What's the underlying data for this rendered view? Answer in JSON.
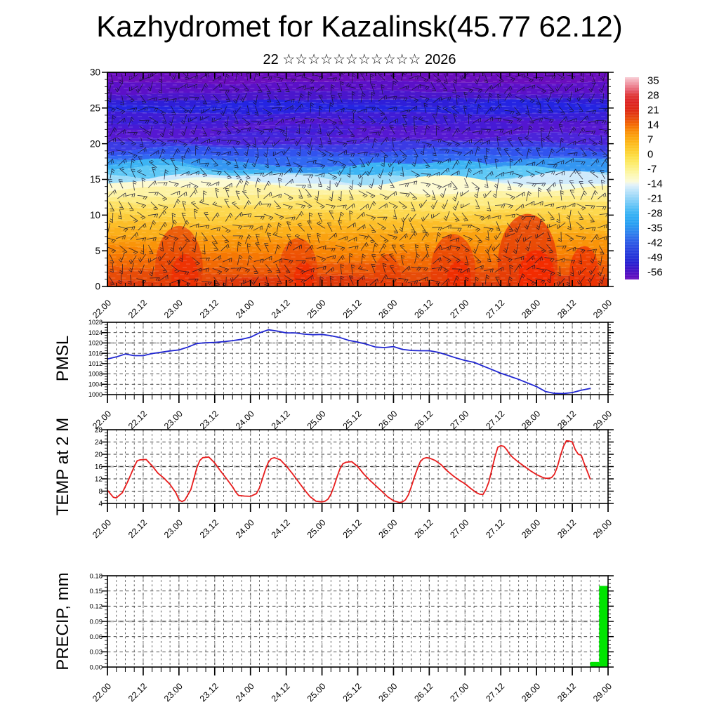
{
  "title": "Kazhydromet for Kazalinsk(45.77 62.12)",
  "subtitle": "22 ☆☆☆☆☆☆☆☆☆☆☆ 2026",
  "x_axis": {
    "labels": [
      "22.00",
      "22.12",
      "23.00",
      "23.12",
      "24.00",
      "24.12",
      "25.00",
      "25.12",
      "26.00",
      "26.12",
      "27.00",
      "27.12",
      "28.00",
      "28.12",
      "29.00"
    ],
    "major_step_hours": 12,
    "minor_step_hours": 3,
    "span_hours": 168
  },
  "chart_data": [
    {
      "id": "time_height_section",
      "type": "heatmap",
      "overlay": "wind-barbs",
      "ylim": [
        0,
        30
      ],
      "ytick_values": [
        0,
        5,
        10,
        15,
        20,
        25,
        30
      ],
      "ytick_labels": [
        "0",
        "5",
        "10",
        "15",
        "20",
        "25",
        "30"
      ],
      "bands": [
        [
          30,
          "#6a0dbe"
        ],
        [
          28.6,
          "#5b10c8"
        ],
        [
          27.2,
          "#4a16cc"
        ],
        [
          26.2,
          "#2e1ed8"
        ],
        [
          25.6,
          "#2424e2"
        ],
        [
          24.9,
          "#2822e0"
        ],
        [
          24.3,
          "#3f1cd6"
        ],
        [
          23.2,
          "#5316d0"
        ],
        [
          22.0,
          "#5618d2"
        ],
        [
          21.0,
          "#4b24da"
        ],
        [
          20.1,
          "#3b3ae4"
        ],
        [
          19.2,
          "#3153ee"
        ],
        [
          18.3,
          "#3168f2"
        ],
        [
          17.4,
          "#3396f2"
        ],
        [
          16.7,
          "#3cb4f4"
        ],
        [
          16.1,
          "#5ec8f6"
        ],
        [
          15.5,
          "#9cdcf8"
        ],
        [
          15.0,
          "#cfeafb"
        ],
        [
          14.65,
          "#effae8"
        ],
        [
          14.35,
          "#fdfad0"
        ],
        [
          13.6,
          "#fdf3a4"
        ],
        [
          12.7,
          "#fdec84"
        ],
        [
          11.8,
          "#fde266"
        ],
        [
          10.9,
          "#fdd84e"
        ],
        [
          10.0,
          "#fccc3a"
        ],
        [
          9.1,
          "#fcbe28"
        ],
        [
          8.2,
          "#fbb01a"
        ],
        [
          7.3,
          "#faa210"
        ],
        [
          6.4,
          "#f99409"
        ],
        [
          5.5,
          "#f88604"
        ],
        [
          4.6,
          "#f67803"
        ],
        [
          3.7,
          "#f26a04"
        ],
        [
          2.8,
          "#ed5a06"
        ],
        [
          1.9,
          "#e74c08"
        ],
        [
          1.0,
          "#e0390a"
        ],
        [
          0,
          "#dd360b"
        ]
      ],
      "hot_spots": [
        {
          "t": 24,
          "w": 16,
          "top": 7.5,
          "color": "#e63c06",
          "opacity": 0.7
        },
        {
          "t": 26,
          "w": 9,
          "top": 4.0,
          "color": "#ef2e02",
          "opacity": 0.8
        },
        {
          "t": 64,
          "w": 13,
          "top": 6.0,
          "color": "#e83a05",
          "opacity": 0.65
        },
        {
          "t": 66,
          "w": 7,
          "top": 3.0,
          "color": "#f22a00",
          "opacity": 0.75
        },
        {
          "t": 94,
          "w": 9,
          "top": 4.0,
          "color": "#ea3c04",
          "opacity": 0.55
        },
        {
          "t": 116,
          "w": 15,
          "top": 6.5,
          "color": "#e83a05",
          "opacity": 0.7
        },
        {
          "t": 118,
          "w": 8,
          "top": 3.2,
          "color": "#f22a00",
          "opacity": 0.75
        },
        {
          "t": 141,
          "w": 20,
          "top": 9.0,
          "color": "#e53a06",
          "opacity": 0.8
        },
        {
          "t": 144,
          "w": 12,
          "top": 4.5,
          "color": "#f42800",
          "opacity": 0.85
        },
        {
          "t": 160,
          "w": 10,
          "top": 5.0,
          "color": "#ee3202",
          "opacity": 0.75
        }
      ],
      "colorbar": {
        "tick_values": [
          35,
          28,
          21,
          14,
          7,
          0,
          -7,
          -14,
          -21,
          -28,
          -35,
          -42,
          -49,
          -56
        ],
        "tick_labels": [
          "35",
          "28",
          "21",
          "14",
          "7",
          "0",
          "-7",
          "-14",
          "-21",
          "-28",
          "-35",
          "-42",
          "-49",
          "-56"
        ],
        "value_range": [
          36.5,
          -59.5
        ],
        "stops": [
          [
            36.5,
            "#f8ccd4"
          ],
          [
            33,
            "#ef8e9c"
          ],
          [
            30,
            "#e55868"
          ],
          [
            28,
            "#e03a3a"
          ],
          [
            25,
            "#dd2424"
          ],
          [
            21,
            "#de2a16"
          ],
          [
            17,
            "#e84a0c"
          ],
          [
            14,
            "#f46a06"
          ],
          [
            11,
            "#f98c06"
          ],
          [
            8,
            "#fca60e"
          ],
          [
            5,
            "#fdba1c"
          ],
          [
            2,
            "#fdcc2c"
          ],
          [
            -1,
            "#fdde44"
          ],
          [
            -4,
            "#fdea64"
          ],
          [
            -7,
            "#fdf28c"
          ],
          [
            -10,
            "#fdf8b4"
          ],
          [
            -13,
            "#fbfad8"
          ],
          [
            -14.5,
            "#e4f2f8"
          ],
          [
            -17,
            "#c2e6fa"
          ],
          [
            -21,
            "#92d4f8"
          ],
          [
            -25,
            "#5cc2f6"
          ],
          [
            -29,
            "#34b0f4"
          ],
          [
            -33,
            "#28a0f2"
          ],
          [
            -37,
            "#2e84ee"
          ],
          [
            -41,
            "#2f62e8"
          ],
          [
            -45,
            "#2a46e0"
          ],
          [
            -49,
            "#2432d8"
          ],
          [
            -52,
            "#2a1ed0"
          ],
          [
            -55,
            "#4414c6"
          ],
          [
            -59.5,
            "#6a0dbe"
          ]
        ]
      }
    },
    {
      "id": "pmsl",
      "type": "line",
      "ylabel": "PMSL",
      "line_color": "#2026d2",
      "ylim": [
        1000,
        1028
      ],
      "ytick_values": [
        1000,
        1004,
        1008,
        1012,
        1016,
        1020,
        1024,
        1028
      ],
      "ytick_labels": [
        "1000",
        "1004",
        "1008",
        "1012",
        "1016",
        "1020",
        "1024",
        "1028"
      ],
      "emphasis_gridline": 1020,
      "series": [
        [
          0,
          1013.8
        ],
        [
          3,
          1014.6
        ],
        [
          6,
          1015.7
        ],
        [
          9,
          1015.1
        ],
        [
          12,
          1015.1
        ],
        [
          15,
          1015.9
        ],
        [
          18,
          1016.4
        ],
        [
          21,
          1016.9
        ],
        [
          24,
          1017.3
        ],
        [
          27,
          1018.4
        ],
        [
          30,
          1019.8
        ],
        [
          33,
          1020.1
        ],
        [
          36,
          1020.2
        ],
        [
          39,
          1020.5
        ],
        [
          42,
          1020.9
        ],
        [
          45,
          1021.4
        ],
        [
          48,
          1022.2
        ],
        [
          51,
          1023.9
        ],
        [
          54,
          1025.1
        ],
        [
          57,
          1024.6
        ],
        [
          60,
          1023.9
        ],
        [
          63,
          1023.9
        ],
        [
          66,
          1023.4
        ],
        [
          69,
          1023.2
        ],
        [
          72,
          1023.3
        ],
        [
          75,
          1022.8
        ],
        [
          78,
          1022.1
        ],
        [
          81,
          1021.0
        ],
        [
          84,
          1020.3
        ],
        [
          87,
          1019.5
        ],
        [
          90,
          1018.4
        ],
        [
          93,
          1018.2
        ],
        [
          96,
          1018.6
        ],
        [
          99,
          1017.5
        ],
        [
          102,
          1017.1
        ],
        [
          105,
          1017.0
        ],
        [
          108,
          1017.0
        ],
        [
          111,
          1016.4
        ],
        [
          114,
          1015.3
        ],
        [
          117,
          1014.2
        ],
        [
          120,
          1013.2
        ],
        [
          123,
          1012.5
        ],
        [
          126,
          1011.1
        ],
        [
          129,
          1009.7
        ],
        [
          132,
          1008.3
        ],
        [
          135,
          1007.1
        ],
        [
          138,
          1005.9
        ],
        [
          141,
          1004.5
        ],
        [
          144,
          1003.1
        ],
        [
          147,
          1001.2
        ],
        [
          150,
          1000.5
        ],
        [
          153,
          1000.4
        ],
        [
          156,
          1000.8
        ],
        [
          159,
          1001.7
        ],
        [
          162,
          1002.4
        ]
      ]
    },
    {
      "id": "temp_2m",
      "type": "line",
      "ylabel": "TEMP at 2 M",
      "line_color": "#e81c1c",
      "ylim": [
        4,
        28
      ],
      "ytick_values": [
        4,
        8,
        12,
        16,
        20,
        24,
        28
      ],
      "ytick_labels": [
        "4",
        "8",
        "12",
        "16",
        "20",
        "24",
        "28"
      ],
      "emphasis_gridline": 16,
      "series": [
        [
          0,
          8.3
        ],
        [
          2,
          6.0
        ],
        [
          3,
          5.8
        ],
        [
          5,
          7.5
        ],
        [
          7,
          11.5
        ],
        [
          9,
          16.0
        ],
        [
          10,
          17.9
        ],
        [
          11,
          18.2
        ],
        [
          13,
          18.3
        ],
        [
          15,
          16.2
        ],
        [
          17,
          13.8
        ],
        [
          19,
          12.2
        ],
        [
          21,
          10.2
        ],
        [
          23,
          7.4
        ],
        [
          24,
          5.2
        ],
        [
          25,
          4.6
        ],
        [
          26,
          5.1
        ],
        [
          28,
          8.5
        ],
        [
          29,
          12.0
        ],
        [
          30,
          15.6
        ],
        [
          31,
          18.0
        ],
        [
          32,
          18.9
        ],
        [
          34,
          19.1
        ],
        [
          36,
          17.2
        ],
        [
          38,
          14.5
        ],
        [
          40,
          12.0
        ],
        [
          42,
          9.4
        ],
        [
          43,
          7.8
        ],
        [
          44,
          6.6
        ],
        [
          46,
          6.4
        ],
        [
          48,
          6.3
        ],
        [
          50,
          7.2
        ],
        [
          51,
          9.0
        ],
        [
          52,
          12.0
        ],
        [
          53,
          15.0
        ],
        [
          54,
          17.4
        ],
        [
          55,
          18.6
        ],
        [
          56,
          18.9
        ],
        [
          58,
          18.2
        ],
        [
          60,
          16.2
        ],
        [
          62,
          13.8
        ],
        [
          64,
          11.2
        ],
        [
          66,
          8.6
        ],
        [
          68,
          6.2
        ],
        [
          70,
          4.7
        ],
        [
          72,
          4.5
        ],
        [
          73,
          4.7
        ],
        [
          74,
          5.4
        ],
        [
          75,
          7.0
        ],
        [
          76,
          9.5
        ],
        [
          77,
          12.5
        ],
        [
          78,
          15.2
        ],
        [
          79,
          16.9
        ],
        [
          80,
          17.4
        ],
        [
          82,
          17.6
        ],
        [
          84,
          16.0
        ],
        [
          86,
          13.6
        ],
        [
          88,
          11.6
        ],
        [
          90,
          9.8
        ],
        [
          92,
          8.0
        ],
        [
          94,
          6.2
        ],
        [
          96,
          4.9
        ],
        [
          98,
          4.3
        ],
        [
          99,
          4.5
        ],
        [
          100,
          5.2
        ],
        [
          101,
          6.8
        ],
        [
          102,
          9.5
        ],
        [
          103,
          12.5
        ],
        [
          104,
          15.3
        ],
        [
          105,
          17.6
        ],
        [
          106,
          18.6
        ],
        [
          107,
          18.9
        ],
        [
          108,
          18.8
        ],
        [
          110,
          18.0
        ],
        [
          112,
          16.6
        ],
        [
          114,
          14.6
        ],
        [
          116,
          13.0
        ],
        [
          118,
          11.6
        ],
        [
          120,
          10.4
        ],
        [
          122,
          8.8
        ],
        [
          124,
          7.4
        ],
        [
          125,
          7.0
        ],
        [
          126,
          6.9
        ],
        [
          127,
          8.5
        ],
        [
          128,
          11.0
        ],
        [
          129,
          15.0
        ],
        [
          130,
          19.0
        ],
        [
          131,
          22.3
        ],
        [
          132,
          22.8
        ],
        [
          133,
          22.6
        ],
        [
          134,
          21.5
        ],
        [
          135,
          20.0
        ],
        [
          136,
          19.0
        ],
        [
          138,
          17.4
        ],
        [
          140,
          16.0
        ],
        [
          142,
          14.6
        ],
        [
          144,
          13.4
        ],
        [
          146,
          12.5
        ],
        [
          147,
          12.2
        ],
        [
          148,
          12.2
        ],
        [
          149,
          12.4
        ],
        [
          150,
          13.5
        ],
        [
          151,
          16.0
        ],
        [
          152,
          19.5
        ],
        [
          153,
          22.5
        ],
        [
          154,
          24.4
        ],
        [
          155,
          24.3
        ],
        [
          156,
          24.0
        ],
        [
          157,
          21.5
        ],
        [
          158,
          20.0
        ],
        [
          159,
          19.7
        ],
        [
          160,
          17.0
        ],
        [
          161,
          14.5
        ],
        [
          162,
          12.0
        ]
      ]
    },
    {
      "id": "precip",
      "type": "bar",
      "ylabel": "PRECIP, mm",
      "bar_color": "#00e400",
      "ylim": [
        0,
        0.18
      ],
      "ytick_values": [
        0,
        0.03,
        0.06,
        0.09,
        0.12,
        0.15,
        0.18
      ],
      "ytick_labels": [
        "0.00",
        "0.03",
        "0.06",
        "0.09",
        "0.12",
        "0.15",
        "0.18"
      ],
      "emphasis_gridline": 0.09,
      "bars": [
        {
          "t0": 162,
          "t1": 165,
          "value": 0.01
        },
        {
          "t0": 165,
          "t1": 168,
          "value": 0.16
        }
      ]
    }
  ]
}
